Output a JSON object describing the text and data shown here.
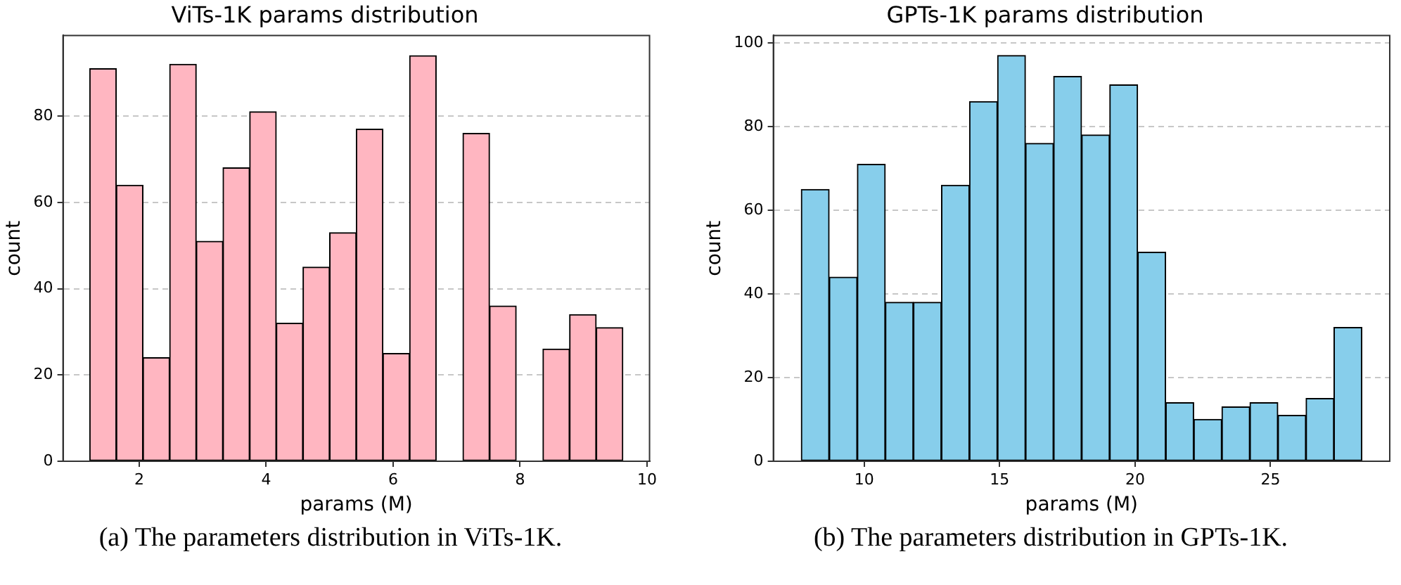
{
  "chart_data": [
    {
      "type": "histogram",
      "title": "ViTs-1K params distribution",
      "xlabel": "params (M)",
      "ylabel": "count",
      "annotations": [
        "(a) The parameters distribution in ViTs-1K."
      ],
      "bins": [
        1.22,
        1.64,
        2.06,
        2.48,
        2.9,
        3.32,
        3.74,
        4.16,
        4.58,
        5.0,
        5.42,
        5.84,
        6.26,
        6.68,
        7.1,
        7.52,
        7.94,
        8.36,
        8.78,
        9.2,
        9.62
      ],
      "values": [
        91,
        64,
        24,
        92,
        51,
        68,
        81,
        32,
        45,
        53,
        77,
        25,
        94,
        0,
        76,
        36,
        0,
        26,
        34,
        31
      ],
      "color": "#ffb6c1",
      "xlim": [
        0.8,
        10.04
      ],
      "xticks": [
        2,
        4,
        6,
        8,
        10
      ],
      "ylim": [
        0,
        98.7
      ],
      "yticks": [
        0,
        20,
        40,
        60,
        80
      ],
      "grid": "y"
    },
    {
      "type": "histogram",
      "title": "GPTs-1K params distribution",
      "xlabel": "params (M)",
      "ylabel": "count",
      "annotations": [
        "(b) The parameters distribution in GPTs-1K."
      ],
      "bins": [
        7.68,
        8.71,
        9.75,
        10.78,
        11.82,
        12.85,
        13.89,
        14.92,
        15.96,
        16.99,
        18.03,
        19.06,
        20.1,
        21.13,
        22.17,
        23.2,
        24.24,
        25.27,
        26.31,
        27.34,
        28.37
      ],
      "values": [
        65,
        44,
        71,
        38,
        38,
        66,
        86,
        97,
        76,
        92,
        78,
        90,
        50,
        14,
        10,
        13,
        14,
        11,
        15,
        32
      ],
      "color": "#87ceeb",
      "xlim": [
        6.65,
        29.4
      ],
      "xticks": [
        10,
        15,
        20,
        25
      ],
      "ylim": [
        0,
        101.8
      ],
      "yticks": [
        0,
        20,
        40,
        60,
        80,
        100
      ],
      "grid": "y"
    }
  ]
}
